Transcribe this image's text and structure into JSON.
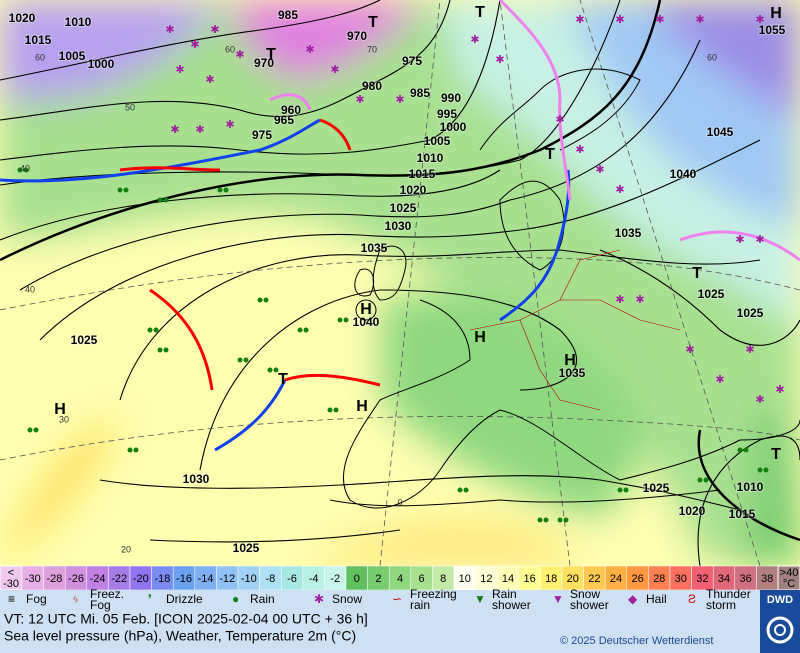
{
  "map": {
    "pressure_labels": [
      "1020",
      "1010",
      "1015",
      "1005",
      "1000",
      "985",
      "970",
      "970",
      "975",
      "980",
      "985",
      "990",
      "995",
      "1000",
      "1005",
      "1010",
      "1015",
      "1020",
      "1025",
      "1030",
      "1035",
      "1040",
      "1045",
      "1040",
      "1035",
      "1025",
      "1025",
      "1035",
      "1030",
      "1025",
      "1055",
      "1020",
      "1015",
      "1010",
      "1025",
      "1025",
      "965",
      "975",
      "960"
    ],
    "centers": [
      "T",
      "T",
      "T",
      "T",
      "T",
      "T",
      "T",
      "H",
      "H",
      "H",
      "H",
      "H",
      "H"
    ],
    "temp_labels": [
      "60",
      "50",
      "40",
      "60",
      "70",
      "30",
      "20",
      "0",
      "60",
      "40"
    ]
  },
  "scale": {
    "low": [
      "<",
      "-30"
    ],
    "values": [
      {
        "label": "-30",
        "color": "#e6b0e6"
      },
      {
        "label": "-28",
        "color": "#dca0dc"
      },
      {
        "label": "-26",
        "color": "#d090dc"
      },
      {
        "label": "-24",
        "color": "#c080e4"
      },
      {
        "label": "-22",
        "color": "#a87ce8"
      },
      {
        "label": "-20",
        "color": "#9074f0"
      },
      {
        "label": "-18",
        "color": "#7a8cf0"
      },
      {
        "label": "-16",
        "color": "#6aa0f0"
      },
      {
        "label": "-14",
        "color": "#80b0f2"
      },
      {
        "label": "-12",
        "color": "#90c0f4"
      },
      {
        "label": "-10",
        "color": "#a0d0f4"
      },
      {
        "label": "-8",
        "color": "#b0e0f4"
      },
      {
        "label": "-6",
        "color": "#a8e8e4"
      },
      {
        "label": "-4",
        "color": "#b8f0e4"
      },
      {
        "label": "-2",
        "color": "#c8f4ec"
      },
      {
        "label": "0",
        "color": "#60c060"
      },
      {
        "label": "2",
        "color": "#78cc70"
      },
      {
        "label": "4",
        "color": "#90d880"
      },
      {
        "label": "6",
        "color": "#a8e090"
      },
      {
        "label": "8",
        "color": "#c4eaa8"
      },
      {
        "label": "10",
        "color": "#fffff0"
      },
      {
        "label": "12",
        "color": "#ffffd4"
      },
      {
        "label": "14",
        "color": "#ffffb8"
      },
      {
        "label": "16",
        "color": "#ffff94"
      },
      {
        "label": "18",
        "color": "#fff070"
      },
      {
        "label": "20",
        "color": "#ffe060"
      },
      {
        "label": "22",
        "color": "#ffc850"
      },
      {
        "label": "24",
        "color": "#ffb040"
      },
      {
        "label": "26",
        "color": "#ff9840"
      },
      {
        "label": "28",
        "color": "#ff8050"
      },
      {
        "label": "30",
        "color": "#ff7060"
      },
      {
        "label": "32",
        "color": "#f06070"
      },
      {
        "label": "34",
        "color": "#e06878"
      },
      {
        "label": "36",
        "color": "#d07080"
      },
      {
        "label": "38",
        "color": "#b08080"
      }
    ],
    "high": [
      ">40",
      "°C"
    ]
  },
  "legend": [
    {
      "lines": [
        "Fog"
      ]
    },
    {
      "lines": [
        "Freez.",
        "Fog"
      ]
    },
    {
      "lines": [
        "Drizzle"
      ]
    },
    {
      "lines": [
        "Rain"
      ]
    },
    {
      "lines": [
        "Snow"
      ]
    },
    {
      "lines": [
        "Freezing",
        "rain"
      ]
    },
    {
      "lines": [
        "Rain",
        "shower"
      ]
    },
    {
      "lines": [
        "Snow",
        "shower"
      ]
    },
    {
      "lines": [
        "Hail"
      ]
    },
    {
      "lines": [
        "Thunder",
        "storm"
      ]
    }
  ],
  "footer": {
    "valid_time": "VT: 12 UTC Mi.  05 Feb. [ICON 2025-02-04  00 UTC + 36 h]",
    "description": "Sea level pressure (hPa), Weather, Temperature 2m (°C)",
    "copyright": "© 2025 Deutscher Wetterdienst",
    "logo": "DWD"
  }
}
